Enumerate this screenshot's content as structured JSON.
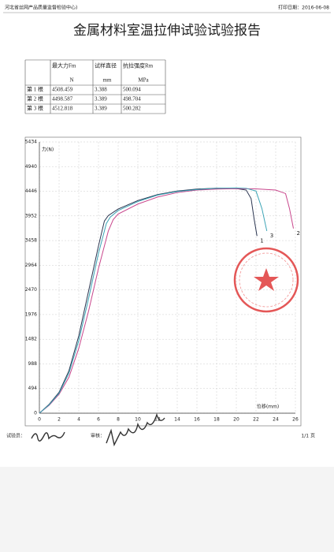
{
  "header": {
    "org": "河北省丝网产品质量监督检验中心)",
    "print_date": "打印日期：2016-06-08"
  },
  "title": "金属材料室温拉伸试验试验报告",
  "table": {
    "header": [
      "最大力Fm",
      "试样直径",
      "抗拉强度Rm"
    ],
    "units": [
      "N",
      "mm",
      "MPa"
    ],
    "rows": [
      [
        "第 1 根",
        4508.459,
        3.388,
        500.094
      ],
      [
        "第 2 根",
        4498.587,
        3.389,
        498.704
      ],
      [
        "第 3 根",
        4512.818,
        3.389,
        500.282
      ]
    ]
  },
  "chart_data": {
    "type": "line",
    "ylabel": "力(N)",
    "xlabel": "位移(mm)",
    "grid": true,
    "xlim": [
      0,
      26
    ],
    "xticks": [
      0,
      2,
      4,
      6,
      8,
      10,
      12,
      14,
      16,
      18,
      20,
      22,
      24,
      26
    ],
    "ylim": [
      0,
      5434
    ],
    "yticks": [
      0,
      494,
      988,
      1482,
      1976,
      2470,
      2964,
      3458,
      3952,
      4446,
      4940,
      5434
    ],
    "series": [
      {
        "name": "1",
        "color": "#2a3550",
        "x": [
          0,
          1,
          2,
          3,
          4,
          5,
          6,
          6.6,
          7,
          8,
          10,
          12,
          14,
          16,
          18,
          20,
          21,
          21.5,
          21.8,
          22.1
        ],
        "values": [
          0,
          180,
          420,
          850,
          1550,
          2450,
          3350,
          3850,
          3960,
          4090,
          4260,
          4380,
          4450,
          4490,
          4508,
          4500,
          4470,
          4300,
          3900,
          3550
        ]
      },
      {
        "name": "2",
        "color": "#c8468c",
        "x": [
          0,
          1,
          2,
          3,
          4,
          5,
          6,
          7,
          7.5,
          8,
          10,
          12,
          14,
          16,
          18,
          20,
          22,
          24,
          25,
          25.4,
          25.8
        ],
        "values": [
          0,
          160,
          380,
          720,
          1300,
          2050,
          2900,
          3650,
          3880,
          3990,
          4190,
          4330,
          4420,
          4470,
          4490,
          4498,
          4495,
          4470,
          4400,
          4100,
          3700
        ]
      },
      {
        "name": "3",
        "color": "#3aa3b5",
        "x": [
          0,
          1,
          2,
          3,
          4,
          5,
          6,
          6.8,
          7.2,
          8,
          10,
          12,
          14,
          16,
          18,
          20,
          21,
          22,
          22.6,
          23.1
        ],
        "values": [
          0,
          170,
          400,
          800,
          1450,
          2300,
          3200,
          3800,
          3930,
          4060,
          4240,
          4370,
          4440,
          4480,
          4505,
          4512,
          4505,
          4450,
          4100,
          3650
        ]
      }
    ]
  },
  "footer": {
    "tester": "试验员：",
    "reviewer": "审核：",
    "page": "1/1 页"
  }
}
